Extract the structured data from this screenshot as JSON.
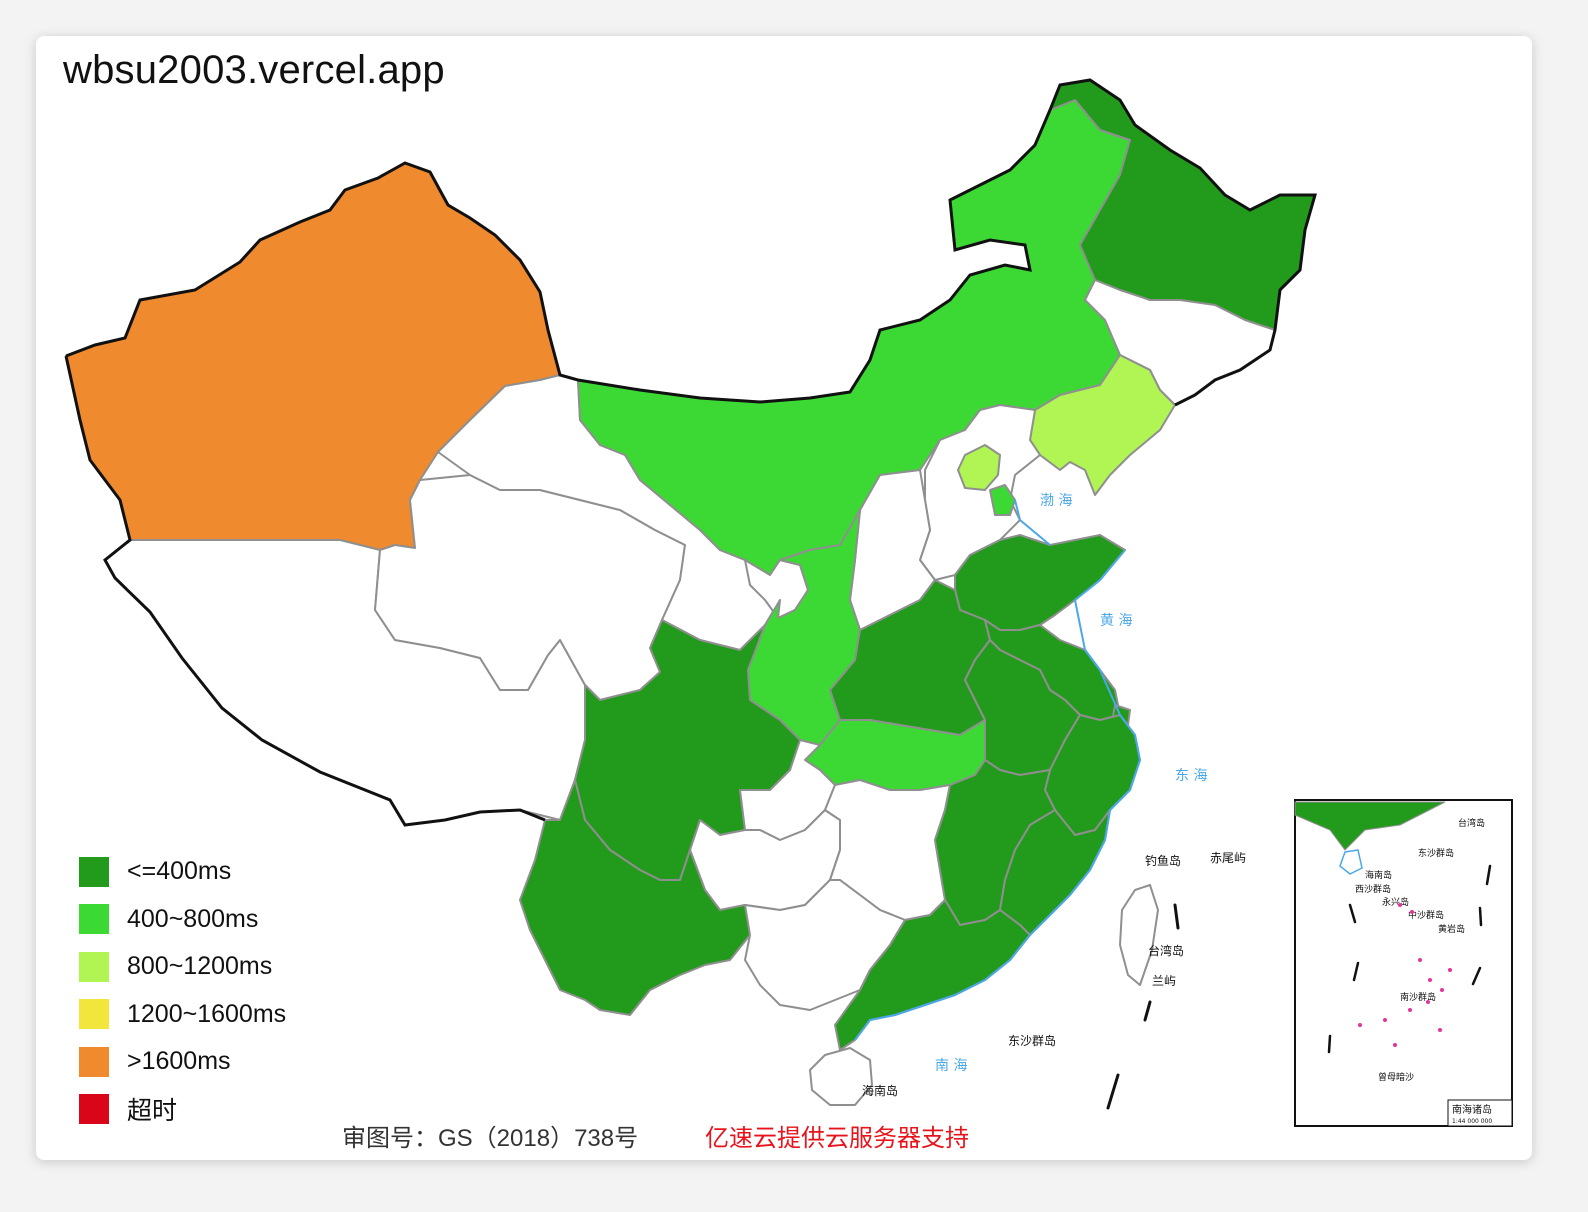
{
  "site_title": "wbsu2003.vercel.app",
  "legend": [
    {
      "label": "<=400ms",
      "color": "#229a1c"
    },
    {
      "label": "400~800ms",
      "color": "#3cd935"
    },
    {
      "label": "800~1200ms",
      "color": "#b0f553"
    },
    {
      "label": "1200~1600ms",
      "color": "#f2e53c"
    },
    {
      "label": ">1600ms",
      "color": "#ef8a2e"
    },
    {
      "label": "超时",
      "color": "#d9061a"
    }
  ],
  "no_data_color": "#ffffff",
  "regions": [
    {
      "id": "xinjiang",
      "tier": 4
    },
    {
      "id": "tibet",
      "tier": -1
    },
    {
      "id": "qinghai",
      "tier": -1
    },
    {
      "id": "gansu",
      "tier": -1
    },
    {
      "id": "inner-mongolia",
      "tier": 1
    },
    {
      "id": "heilongjiang",
      "tier": 0
    },
    {
      "id": "jilin",
      "tier": -1
    },
    {
      "id": "liaoning",
      "tier": 2
    },
    {
      "id": "beijing",
      "tier": 2
    },
    {
      "id": "tianjin",
      "tier": 1
    },
    {
      "id": "hebei",
      "tier": -1
    },
    {
      "id": "shanxi",
      "tier": -1
    },
    {
      "id": "ningxia",
      "tier": -1
    },
    {
      "id": "shaanxi",
      "tier": 1
    },
    {
      "id": "shandong",
      "tier": 0
    },
    {
      "id": "henan",
      "tier": 0
    },
    {
      "id": "jiangsu",
      "tier": 0
    },
    {
      "id": "anhui",
      "tier": 0
    },
    {
      "id": "shanghai",
      "tier": 0
    },
    {
      "id": "hubei",
      "tier": 1
    },
    {
      "id": "zhejiang",
      "tier": 0
    },
    {
      "id": "sichuan",
      "tier": 0
    },
    {
      "id": "chongqing",
      "tier": -1
    },
    {
      "id": "guizhou",
      "tier": -1
    },
    {
      "id": "hunan",
      "tier": -1
    },
    {
      "id": "jiangxi",
      "tier": 0
    },
    {
      "id": "fujian",
      "tier": 0
    },
    {
      "id": "yunnan",
      "tier": 0
    },
    {
      "id": "guangxi",
      "tier": -1
    },
    {
      "id": "guangdong",
      "tier": 0
    },
    {
      "id": "hainan",
      "tier": -1
    },
    {
      "id": "taiwan",
      "tier": -1
    }
  ],
  "map_labels": {
    "bohai": "渤 海",
    "huanghai": "黄 海",
    "donghai": "东 海",
    "nanhai": "南 海",
    "taiwan_island": "台湾岛",
    "hainan_island": "海南岛",
    "diaoyu": "钓鱼岛",
    "chiwei": "赤尾屿",
    "dongsha": "东沙群岛",
    "lanyu": "兰屿",
    "inset_taiwan": "台湾岛",
    "inset_dongsha": "东沙群岛",
    "inset_hainan": "海南岛",
    "inset_xisha": "西沙群岛",
    "inset_yongxing": "永兴岛",
    "inset_zhongsha": "中沙群岛",
    "inset_huangyan": "黄岩岛",
    "inset_nansha": "南沙群岛",
    "inset_zengmu": "曾母暗沙",
    "inset_title": "南海诸岛",
    "inset_scale": "1:44 000 000"
  },
  "footer": {
    "approval": "审图号：GS（2018）738号",
    "sponsor": "亿速云提供云服务器支持"
  }
}
